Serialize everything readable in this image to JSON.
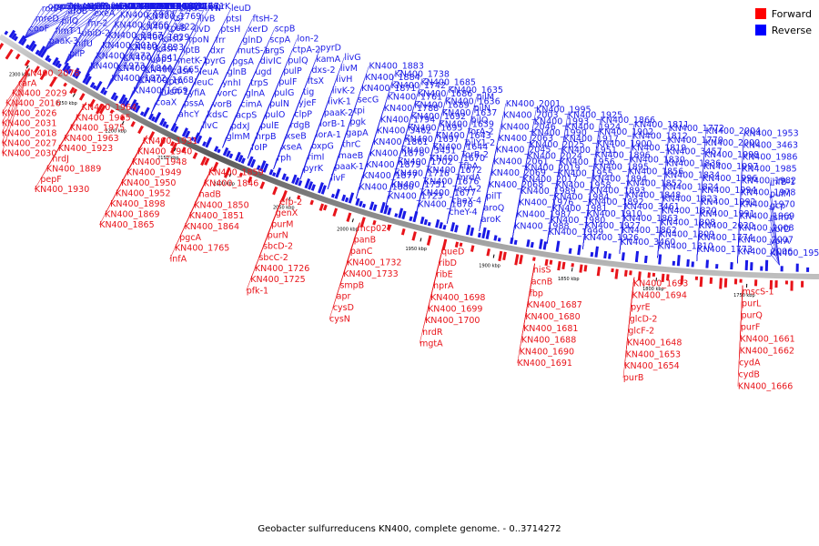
{
  "legend": [
    {
      "label": "Forward",
      "color": "#ff0000"
    },
    {
      "label": "Reverse",
      "color": "#0000ff"
    }
  ],
  "caption": "Geobacter sulfurreducens KN400, complete genome. - 0..3714272",
  "colors": {
    "forward": "#e8141a",
    "reverse": "#1a1ae6",
    "backbone": "#7a7a7a"
  },
  "ruler_ticks": [
    "2300 kbp",
    "2250 kbp",
    "2200 kbp",
    "2150 kbp",
    "2100 kbp",
    "2050 kbp",
    "2000 kbp",
    "1950 kbp",
    "1900 kbp",
    "1850 kbp",
    "1800 kbp",
    "1750 kbp"
  ],
  "reverse_labels": [
    "cooF",
    "mreD",
    "rodA",
    "omcZ",
    "ppnK",
    "rnhA",
    "secA",
    "recN",
    "argJ",
    "valS",
    "pilD",
    "paaK-3",
    "fimT-1",
    "pilQ",
    "aroB",
    "pyrG",
    "accB",
    "arcC",
    "nifS",
    "mutL",
    "hfq",
    "miaA",
    "pilP",
    "nifU",
    "ubiD-2",
    "fnr-2",
    "exeA",
    "epsH",
    "cysE-2",
    "asnB",
    "KN400_2035",
    "KN400_2011",
    "KN400_1974",
    "KN400_1973",
    "KN400_1972",
    "KN400_2010",
    "KN400_1967",
    "KN400_1966",
    "KN400_1977",
    "KN400_1957",
    "KN400_1934",
    "KN400_1916",
    "KN400_1881",
    "KN400_1876",
    "KN400_1872",
    "KN400_1844",
    "KN400_1841",
    "KN400_1833",
    "KN400_1829",
    "KN400_1822",
    "KN400_1769",
    "KN400_1768",
    "KN400_1767",
    "KN400_1766",
    "KN400_1671",
    "KN400_1669",
    "KN400_1668",
    "KN400_1665",
    "uppS",
    "kdsA",
    "kdsD",
    "rpsB",
    "tsf",
    "capL",
    "nadC",
    "birA",
    "coaX",
    "fusA-1",
    "lptA",
    "cdsA",
    "metK-1",
    "lptB",
    "rpoN",
    "ilvD",
    "ilvB",
    "ilvN",
    "hprK",
    "ahcY",
    "pssA",
    "yfiA",
    "leuC",
    "leuA",
    "pyrG",
    "dxr",
    "frr",
    "ptsH",
    "ptsI",
    "leuD",
    "ilvC",
    "kdsC",
    "vorB",
    "vorC",
    "ynhI",
    "glnB",
    "pgsA",
    "mutS-1",
    "glnD",
    "xerD",
    "ftsH-2",
    "glmM",
    "pdxJ",
    "acpS",
    "cimA",
    "glnA",
    "trpS",
    "ugd",
    "divIC",
    "argS",
    "scpA",
    "scpB",
    "foIP",
    "hrpB",
    "pulE",
    "pulO",
    "pulN",
    "pulG",
    "pulF",
    "pulP",
    "pulQ",
    "ctpA-2",
    "lon-2",
    "rph",
    "xseA",
    "xseB",
    "rdgB",
    "clpP",
    "yjeF",
    "tig",
    "ftsX",
    "dxs-2",
    "kamA",
    "pyrD",
    "pyrK",
    "rimI",
    "oxpG",
    "iorA-1",
    "iorB-1",
    "paaK-2",
    "livK-1",
    "livK-2",
    "livH",
    "livM",
    "livG",
    "livF",
    "paaK-1",
    "maeB",
    "thrC",
    "gapA",
    "pgk",
    "tpi",
    "secG",
    "KN400_1871",
    "KN400_1884",
    "KN400_1883",
    "KN400_1880",
    "KN400_1877",
    "KN400_1879",
    "KN400_1878",
    "KN400_1861",
    "KN400_3462",
    "KN400_1794",
    "KN400_1788",
    "KN400_1761",
    "KN400_1742",
    "KN400_1738",
    "KN400_1723",
    "KN400_1751",
    "KN400_1716",
    "KN400_1702",
    "KN400_3451",
    "KN400_1697",
    "KN400_1695",
    "KN400_1692",
    "KN400_1689",
    "KN400_1686",
    "KN400_1685",
    "KN400_1678",
    "KN400_1677",
    "KN400_1676",
    "KN400_1672",
    "KN400_1670",
    "KN400_1644",
    "KN400_1643",
    "KN400_1639",
    "KN400_1637",
    "KN400_1636",
    "KN400_1635",
    "cheY-4",
    "cheX-4",
    "lexA-2",
    "mrdA",
    "rfbA",
    "iorB-2",
    "pilY1-2",
    "iorA-2",
    "pilO",
    "pilN",
    "pilM",
    "aroK",
    "aroQ",
    "pilT",
    "KN400_2068",
    "KN400_2069",
    "KN400_2061",
    "KN400_2045",
    "KN400_2063",
    "KN400_2046",
    "KN400_2003",
    "KN400_2001",
    "KN400_1988",
    "KN400_1987",
    "KN400_1976",
    "KN400_1989",
    "KN400_2017",
    "KN400_2019",
    "KN400_2024",
    "KN400_2025",
    "KN400_1990",
    "KN400_1993",
    "KN400_1995",
    "KN400_1999",
    "KN400_1980",
    "KN400_1981",
    "KN400_1984",
    "KN400_1958",
    "KN400_1955",
    "KN400_1956",
    "KN400_1951",
    "KN400_1917",
    "KN400_1924",
    "KN400_1925",
    "KN400_1926",
    "KN400_1927",
    "KN400_1910",
    "KN400_1892",
    "KN400_1893",
    "KN400_1894",
    "KN400_1895",
    "KN400_1896",
    "KN400_1900",
    "KN400_1902",
    "KN400_1866",
    "KN400_3460",
    "KN400_1862",
    "KN400_1863",
    "KN400_3461",
    "KN400_1848",
    "KN400_1852",
    "KN400_1856",
    "KN400_1830",
    "KN400_1819",
    "KN400_1812",
    "KN400_1811",
    "KN400_1810",
    "KN400_1809",
    "KN400_1808",
    "KN400_1820",
    "KN400_1823",
    "KN400_1824",
    "KN400_1834",
    "KN400_1836",
    "KN400_3457",
    "KN400_1770",
    "KN400_1772",
    "KN400_1773",
    "KN400_1774",
    "KN400_2020",
    "KN400_1991",
    "KN400_1992",
    "KN400_1994",
    "KN400_1996",
    "KN400_1997",
    "KN400_1998",
    "KN400_2000",
    "KN400_2004",
    "KN400_2006",
    "KN400_2007",
    "KN400_2008",
    "KN400_1969",
    "KN400_1970",
    "KN400_1978",
    "KN400_1982",
    "KN400_1985",
    "KN400_1986",
    "KN400_3463",
    "KN400_1953",
    "KN400_1954",
    "vorA",
    "vorD",
    "rsmA",
    "gcp",
    "pulM",
    "ihfB-1"
  ],
  "forward_labels": [
    "KN400_2078",
    "rarA",
    "KN400_2029",
    "KN400_2016",
    "KN400_2026",
    "KN400_2031",
    "KN400_2018",
    "KN400_2027",
    "KN400_2030",
    "KN400_1964",
    "KN400_1965",
    "KN400_1975",
    "KN400_1963",
    "KN400_1923",
    "nrdJ",
    "KN400_1889",
    "pepF",
    "KN400_1930",
    "KN400_1931",
    "KN400_1940",
    "KN400_1948",
    "KN400_1949",
    "KN400_1950",
    "KN400_1952",
    "KN400_1898",
    "KN400_1869",
    "KN400_1865",
    "KN400_1859",
    "KN400_1846",
    "nadB",
    "KN400_1850",
    "KN400_1851",
    "KN400_1864",
    "pgcA",
    "KN400_1765",
    "infA",
    "efp-2",
    "genX",
    "purM",
    "purN",
    "sbcD-2",
    "sbcC-2",
    "KN400_1726",
    "KN400_1725",
    "pfk-1",
    "mcp027",
    "panB",
    "panC",
    "KN400_1732",
    "KN400_1733",
    "smpB",
    "apr",
    "cysD",
    "cysN",
    "queD",
    "ribD",
    "ribE",
    "hprA",
    "KN400_1698",
    "KN400_1699",
    "KN400_1700",
    "nrdR",
    "mgtA",
    "hisS",
    "acnB",
    "fbp",
    "KN400_1687",
    "KN400_1680",
    "KN400_1681",
    "KN400_1688",
    "KN400_1690",
    "KN400_1691",
    "KN400_1693",
    "KN400_1694",
    "pyrE",
    "glcD-2",
    "glcF-2",
    "KN400_1648",
    "KN400_1653",
    "KN400_1654",
    "purB",
    "mscS-1",
    "purL",
    "purQ",
    "purF",
    "KN400_1661",
    "KN400_1662",
    "cydA",
    "cydB",
    "KN400_1666"
  ]
}
